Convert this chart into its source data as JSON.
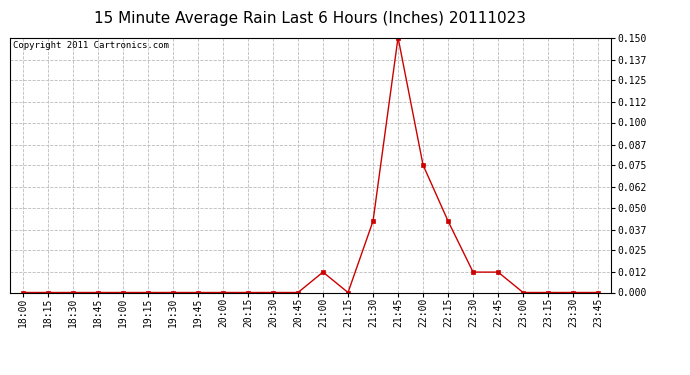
{
  "title": "15 Minute Average Rain Last 6 Hours (Inches) 20111023",
  "copyright": "Copyright 2011 Cartronics.com",
  "x_labels": [
    "18:00",
    "18:15",
    "18:30",
    "18:45",
    "19:00",
    "19:15",
    "19:30",
    "19:45",
    "20:00",
    "20:15",
    "20:30",
    "20:45",
    "21:00",
    "21:15",
    "21:30",
    "21:45",
    "22:00",
    "22:15",
    "22:30",
    "22:45",
    "23:00",
    "23:15",
    "23:30",
    "23:45"
  ],
  "y_values": [
    0.0,
    0.0,
    0.0,
    0.0,
    0.0,
    0.0,
    0.0,
    0.0,
    0.0,
    0.0,
    0.0,
    0.0,
    0.012,
    0.0,
    0.042,
    0.15,
    0.075,
    0.042,
    0.012,
    0.012,
    0.0,
    0.0,
    0.0,
    0.0
  ],
  "y_ticks": [
    0.0,
    0.012,
    0.025,
    0.037,
    0.05,
    0.062,
    0.075,
    0.087,
    0.1,
    0.112,
    0.125,
    0.137,
    0.15
  ],
  "line_color": "#cc0000",
  "marker_color": "#cc0000",
  "grid_color": "#bbbbbb",
  "bg_color": "#ffffff",
  "outer_bg": "#ffffff",
  "title_fontsize": 11,
  "copyright_fontsize": 6.5,
  "tick_fontsize": 7,
  "ylim": [
    0.0,
    0.15
  ]
}
